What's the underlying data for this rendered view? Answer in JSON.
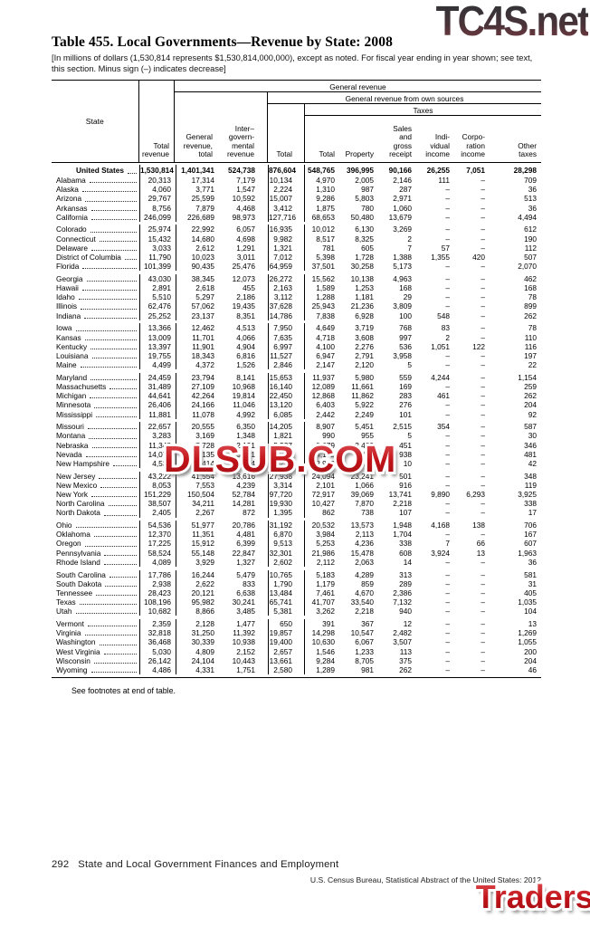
{
  "page": {
    "title": "Table 455. Local Governments—Revenue by State: 2008",
    "note": "[In millions of dollars (1,530,814 represents $1,530,814,000,000), except as noted. For fiscal year ending in year shown; see text,\nthis section. Minus sign (–) indicates decrease]",
    "footnote": "See footnotes at end of table.",
    "page_number": "292",
    "section_title": "State and Local Government Finances and Employment",
    "source_line": "U.S. Census Bureau, Statistical Abstract of the United States: 2012"
  },
  "watermarks": {
    "top": "TC4S.net",
    "middle": "DLSUB.COM",
    "bottom": "TradersXtreme.com",
    "red": "#c3161c"
  },
  "table": {
    "group_headers": {
      "general_revenue": "General revenue",
      "own_sources": "General revenue from own sources",
      "taxes": "Taxes"
    },
    "columns": [
      "State",
      "Total\nrevenue",
      "General\nrevenue,\ntotal",
      "Inter–\ngovern-\nmental\nrevenue",
      "Total",
      "Total",
      "Property",
      "Sales\nand\ngross\nreceipt",
      "Indi-\nvidual\nincome",
      "Corpo-\nration\nincome",
      "Other\ntaxes"
    ],
    "united_states": {
      "state": "United States",
      "v": [
        "1,530,814",
        "1,401,341",
        "524,738",
        "876,604",
        "548,765",
        "396,995",
        "90,166",
        "26,255",
        "7,051",
        "28,298"
      ]
    },
    "rows": [
      {
        "state": "Alabama",
        "gs": false,
        "v": [
          "20,313",
          "17,314",
          "7,179",
          "10,134",
          "4,970",
          "2,005",
          "2,146",
          "111",
          "–",
          "709"
        ]
      },
      {
        "state": "Alaska",
        "gs": false,
        "v": [
          "4,060",
          "3,771",
          "1,547",
          "2,224",
          "1,310",
          "987",
          "287",
          "–",
          "–",
          "36"
        ]
      },
      {
        "state": "Arizona",
        "gs": false,
        "v": [
          "29,767",
          "25,599",
          "10,592",
          "15,007",
          "9,286",
          "5,803",
          "2,971",
          "–",
          "–",
          "513"
        ]
      },
      {
        "state": "Arkansas",
        "gs": false,
        "v": [
          "8,756",
          "7,879",
          "4,468",
          "3,412",
          "1,875",
          "780",
          "1,060",
          "–",
          "–",
          "36"
        ]
      },
      {
        "state": "California",
        "gs": false,
        "v": [
          "246,099",
          "226,689",
          "98,973",
          "127,716",
          "68,653",
          "50,480",
          "13,679",
          "–",
          "–",
          "4,494"
        ]
      },
      {
        "state": "Colorado",
        "gs": true,
        "v": [
          "25,974",
          "22,992",
          "6,057",
          "16,935",
          "10,012",
          "6,130",
          "3,269",
          "–",
          "–",
          "612"
        ]
      },
      {
        "state": "Connecticut",
        "gs": false,
        "v": [
          "15,432",
          "14,680",
          "4,698",
          "9,982",
          "8,517",
          "8,325",
          "2",
          "–",
          "–",
          "190"
        ]
      },
      {
        "state": "Delaware",
        "gs": false,
        "v": [
          "3,033",
          "2,612",
          "1,291",
          "1,321",
          "781",
          "605",
          "7",
          "57",
          "–",
          "112"
        ]
      },
      {
        "state": "District of Columbia",
        "gs": false,
        "v": [
          "11,790",
          "10,023",
          "3,011",
          "7,012",
          "5,398",
          "1,728",
          "1,388",
          "1,355",
          "420",
          "507"
        ]
      },
      {
        "state": "Florida",
        "gs": false,
        "v": [
          "101,399",
          "90,435",
          "25,476",
          "64,959",
          "37,501",
          "30,258",
          "5,173",
          "–",
          "–",
          "2,070"
        ]
      },
      {
        "state": "Georgia",
        "gs": true,
        "v": [
          "43,030",
          "38,345",
          "12,073",
          "26,272",
          "15,562",
          "10,138",
          "4,963",
          "–",
          "–",
          "462"
        ]
      },
      {
        "state": "Hawaii",
        "gs": false,
        "v": [
          "2,891",
          "2,618",
          "455",
          "2,163",
          "1,589",
          "1,253",
          "168",
          "–",
          "–",
          "168"
        ]
      },
      {
        "state": "Idaho",
        "gs": false,
        "v": [
          "5,510",
          "5,297",
          "2,186",
          "3,112",
          "1,288",
          "1,181",
          "29",
          "–",
          "–",
          "78"
        ]
      },
      {
        "state": "Illinois",
        "gs": false,
        "v": [
          "62,476",
          "57,062",
          "19,435",
          "37,628",
          "25,943",
          "21,236",
          "3,809",
          "–",
          "–",
          "899"
        ]
      },
      {
        "state": "Indiana",
        "gs": false,
        "v": [
          "25,252",
          "23,137",
          "8,351",
          "14,786",
          "7,838",
          "6,928",
          "100",
          "548",
          "–",
          "262"
        ]
      },
      {
        "state": "Iowa",
        "gs": true,
        "v": [
          "13,366",
          "12,462",
          "4,513",
          "7,950",
          "4,649",
          "3,719",
          "768",
          "83",
          "–",
          "78"
        ]
      },
      {
        "state": "Kansas",
        "gs": false,
        "v": [
          "13,009",
          "11,701",
          "4,066",
          "7,635",
          "4,718",
          "3,608",
          "997",
          "2",
          "–",
          "110"
        ]
      },
      {
        "state": "Kentucky",
        "gs": false,
        "v": [
          "13,397",
          "11,901",
          "4,904",
          "6,997",
          "4,100",
          "2,276",
          "536",
          "1,051",
          "122",
          "116"
        ]
      },
      {
        "state": "Louisiana",
        "gs": false,
        "v": [
          "19,755",
          "18,343",
          "6,816",
          "11,527",
          "6,947",
          "2,791",
          "3,958",
          "–",
          "–",
          "197"
        ]
      },
      {
        "state": "Maine",
        "gs": false,
        "v": [
          "4,499",
          "4,372",
          "1,526",
          "2,846",
          "2,147",
          "2,120",
          "5",
          "–",
          "–",
          "22"
        ]
      },
      {
        "state": "Maryland",
        "gs": true,
        "v": [
          "24,459",
          "23,794",
          "8,141",
          "15,653",
          "11,937",
          "5,980",
          "559",
          "4,244",
          "–",
          "1,154"
        ]
      },
      {
        "state": "Massachusetts",
        "gs": false,
        "v": [
          "31,489",
          "27,109",
          "10,968",
          "16,140",
          "12,089",
          "11,661",
          "169",
          "–",
          "–",
          "259"
        ]
      },
      {
        "state": "Michigan",
        "gs": false,
        "v": [
          "44,641",
          "42,264",
          "19,814",
          "22,450",
          "12,868",
          "11,862",
          "283",
          "461",
          "–",
          "262"
        ]
      },
      {
        "state": "Minnesota",
        "gs": false,
        "v": [
          "26,406",
          "24,166",
          "11,046",
          "13,120",
          "6,403",
          "5,922",
          "276",
          "–",
          "–",
          "204"
        ]
      },
      {
        "state": "Mississippi",
        "gs": false,
        "v": [
          "11,881",
          "11,078",
          "4,992",
          "6,085",
          "2,442",
          "2,249",
          "101",
          "–",
          "–",
          "92"
        ]
      },
      {
        "state": "Missouri",
        "gs": true,
        "v": [
          "22,657",
          "20,555",
          "6,350",
          "14,205",
          "8,907",
          "5,451",
          "2,515",
          "354",
          "–",
          "587"
        ]
      },
      {
        "state": "Montana",
        "gs": false,
        "v": [
          "3,283",
          "3,169",
          "1,348",
          "1,821",
          "990",
          "955",
          "5",
          "–",
          "–",
          "30"
        ]
      },
      {
        "state": "Nebraska",
        "gs": false,
        "v": [
          "11,348",
          "7,728",
          "2,191",
          "5,537",
          "3,279",
          "2,483",
          "451",
          "–",
          "–",
          "346"
        ]
      },
      {
        "state": "Nevada",
        "gs": false,
        "v": [
          "14,071",
          "12,135",
          "5,251",
          "6,884",
          "4,172",
          "3,204",
          "938",
          "–",
          "–",
          "481"
        ]
      },
      {
        "state": "New Hampshire",
        "gs": false,
        "v": [
          "4,539",
          "4,414",
          "1,194",
          "3,220",
          "2,978",
          "2,926",
          "10",
          "–",
          "–",
          "42"
        ]
      },
      {
        "state": "New Jersey",
        "gs": true,
        "v": [
          "43,222",
          "41,554",
          "13,616",
          "27,938",
          "24,094",
          "23,241",
          "501",
          "–",
          "–",
          "348"
        ]
      },
      {
        "state": "New Mexico",
        "gs": false,
        "v": [
          "8,053",
          "7,553",
          "4,239",
          "3,314",
          "2,101",
          "1,066",
          "916",
          "–",
          "–",
          "119"
        ]
      },
      {
        "state": "New York",
        "gs": false,
        "v": [
          "151,229",
          "150,504",
          "52,784",
          "97,720",
          "72,917",
          "39,069",
          "13,741",
          "9,890",
          "6,293",
          "3,925"
        ]
      },
      {
        "state": "North Carolina",
        "gs": false,
        "v": [
          "38,507",
          "34,211",
          "14,281",
          "19,930",
          "10,427",
          "7,870",
          "2,218",
          "–",
          "–",
          "338"
        ]
      },
      {
        "state": "North Dakota",
        "gs": false,
        "v": [
          "2,405",
          "2,267",
          "872",
          "1,395",
          "862",
          "738",
          "107",
          "–",
          "–",
          "17"
        ]
      },
      {
        "state": "Ohio",
        "gs": true,
        "v": [
          "54,536",
          "51,977",
          "20,786",
          "31,192",
          "20,532",
          "13,573",
          "1,948",
          "4,168",
          "138",
          "706"
        ]
      },
      {
        "state": "Oklahoma",
        "gs": false,
        "v": [
          "12,370",
          "11,351",
          "4,481",
          "6,870",
          "3,984",
          "2,113",
          "1,704",
          "–",
          "–",
          "167"
        ]
      },
      {
        "state": "Oregon",
        "gs": false,
        "v": [
          "17,225",
          "15,912",
          "6,399",
          "9,513",
          "5,253",
          "4,236",
          "338",
          "7",
          "66",
          "607"
        ]
      },
      {
        "state": "Pennsylvania",
        "gs": false,
        "v": [
          "58,524",
          "55,148",
          "22,847",
          "32,301",
          "21,986",
          "15,478",
          "608",
          "3,924",
          "13",
          "1,963"
        ]
      },
      {
        "state": "Rhode Island",
        "gs": false,
        "v": [
          "4,089",
          "3,929",
          "1,327",
          "2,602",
          "2,112",
          "2,063",
          "14",
          "–",
          "–",
          "36"
        ]
      },
      {
        "state": "South Carolina",
        "gs": true,
        "v": [
          "17,786",
          "16,244",
          "5,479",
          "10,765",
          "5,183",
          "4,289",
          "313",
          "–",
          "–",
          "581"
        ]
      },
      {
        "state": "South Dakota",
        "gs": false,
        "v": [
          "2,938",
          "2,622",
          "833",
          "1,790",
          "1,179",
          "859",
          "289",
          "–",
          "–",
          "31"
        ]
      },
      {
        "state": "Tennessee",
        "gs": false,
        "v": [
          "28,423",
          "20,121",
          "6,638",
          "13,484",
          "7,461",
          "4,670",
          "2,386",
          "–",
          "–",
          "405"
        ]
      },
      {
        "state": "Texas",
        "gs": false,
        "v": [
          "108,196",
          "95,982",
          "30,241",
          "65,741",
          "41,707",
          "33,540",
          "7,132",
          "–",
          "–",
          "1,035"
        ]
      },
      {
        "state": "Utah",
        "gs": false,
        "v": [
          "10,682",
          "8,866",
          "3,485",
          "5,381",
          "3,262",
          "2,218",
          "940",
          "–",
          "–",
          "104"
        ]
      },
      {
        "state": "Vermont",
        "gs": true,
        "v": [
          "2,359",
          "2,128",
          "1,477",
          "650",
          "391",
          "367",
          "12",
          "–",
          "–",
          "13"
        ]
      },
      {
        "state": "Virginia",
        "gs": false,
        "v": [
          "32,818",
          "31,250",
          "11,392",
          "19,857",
          "14,298",
          "10,547",
          "2,482",
          "–",
          "–",
          "1,269"
        ]
      },
      {
        "state": "Washington",
        "gs": false,
        "v": [
          "36,468",
          "30,339",
          "10,938",
          "19,400",
          "10,630",
          "6,067",
          "3,507",
          "–",
          "–",
          "1,055"
        ]
      },
      {
        "state": "West Virginia",
        "gs": false,
        "v": [
          "5,030",
          "4,809",
          "2,152",
          "2,657",
          "1,546",
          "1,233",
          "113",
          "–",
          "–",
          "200"
        ]
      },
      {
        "state": "Wisconsin",
        "gs": false,
        "v": [
          "26,142",
          "24,104",
          "10,443",
          "13,661",
          "9,284",
          "8,705",
          "375",
          "–",
          "–",
          "204"
        ]
      },
      {
        "state": "Wyoming",
        "gs": false,
        "v": [
          "4,486",
          "4,331",
          "1,751",
          "2,580",
          "1,289",
          "981",
          "262",
          "–",
          "–",
          "46"
        ]
      }
    ]
  }
}
